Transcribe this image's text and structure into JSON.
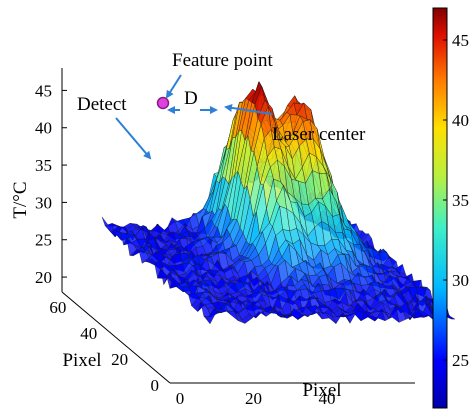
{
  "chart_data": {
    "type": "surface3d",
    "zlabel": "T/°C",
    "xlabel": "Pixel",
    "ylabel": "Pixel",
    "zlim": [
      18,
      48
    ],
    "xlim": [
      0,
      70
    ],
    "ylim": [
      0,
      70
    ],
    "zticks": [
      20,
      25,
      30,
      35,
      40,
      45
    ],
    "xticks": [
      0,
      20,
      40
    ],
    "yticks": [
      0,
      20,
      40,
      60
    ],
    "baseline_temperature": 25,
    "peaks": [
      {
        "x": 35,
        "y": 52,
        "t": 43
      },
      {
        "x": 48,
        "y": 52,
        "t": 41
      }
    ],
    "annotations": {
      "feature_point": "Feature point",
      "detect": "Detect",
      "laser_center": "Laser center",
      "distance": "D"
    },
    "colorbar": {
      "ticks": [
        25,
        30,
        35,
        40,
        45
      ],
      "colormap": "jet",
      "range": [
        22,
        47
      ]
    }
  }
}
